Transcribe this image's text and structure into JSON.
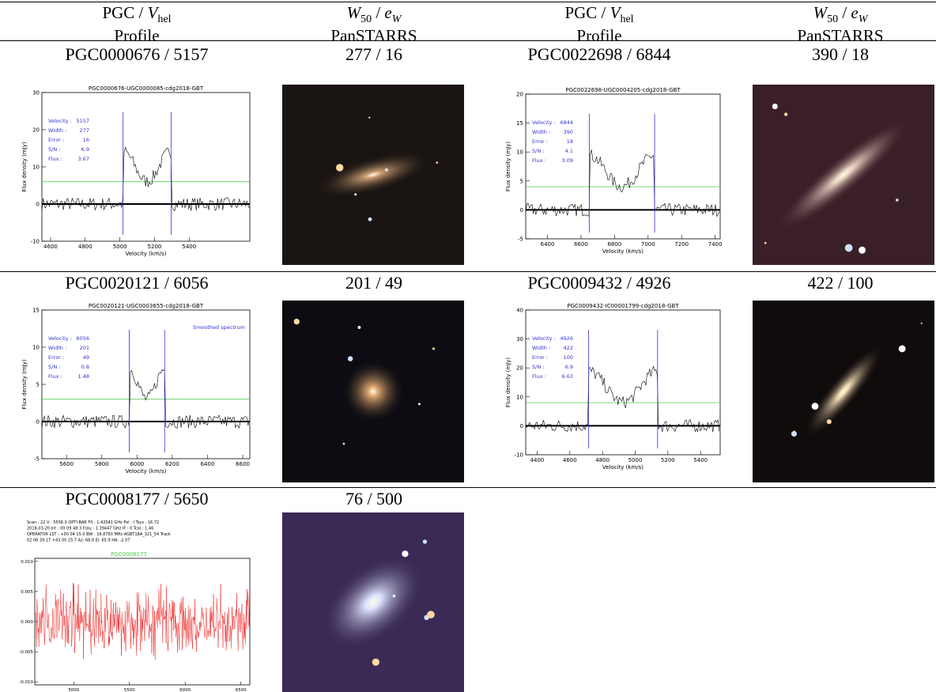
{
  "header": [
    {
      "line1": {
        "pre": "PGC / ",
        "sym": "V",
        "sub": "hel"
      },
      "line2": "Profile"
    },
    {
      "line1": {
        "sym": "W",
        "sub": "50",
        "mid": " / ",
        "sym2": "e",
        "sub2": "W"
      },
      "line2": "PanSTARRS"
    },
    {
      "line1": {
        "pre": "PGC / ",
        "sym": "V",
        "sub": "hel"
      },
      "line2": "Profile"
    },
    {
      "line1": {
        "sym": "W",
        "sub": "50",
        "mid": " / ",
        "sym2": "e",
        "sub2": "W"
      },
      "line2": "PanSTARRS"
    }
  ],
  "rows": [
    {
      "cells": [
        "PGC0000676 / 5157",
        "277 / 16",
        "PGC0022698 / 6844",
        "390 / 18"
      ]
    },
    {
      "cells": [
        "PGC0020121 / 6056",
        "201 / 49",
        "PGC0009432 / 4926",
        "422 / 100"
      ]
    },
    {
      "cells": [
        "PGC0008177 / 5650",
        "76 / 500"
      ]
    }
  ],
  "plots": [
    {
      "title": "PGC0000676-UGC0000085-cdg2018-GBT",
      "info": [
        {
          "label": "Velocity :",
          "value": 5157
        },
        {
          "label": "Width :",
          "value": 277
        },
        {
          "label": "Error :",
          "value": 16
        },
        {
          "label": "S/N :",
          "value": 6.9
        },
        {
          "label": "Flux :",
          "value": 3.67
        }
      ],
      "xlabel": "Velocity (km/s)",
      "ylabel": "Flux density (mJy)",
      "xlim": [
        4550,
        5750
      ],
      "ylim": [
        -10,
        30
      ],
      "xticks": [
        4600,
        4800,
        5000,
        5200,
        5400
      ],
      "yticks": [
        -10,
        0,
        10,
        20,
        30
      ]
    },
    {
      "title": "PGC0022698-UGC0004205-cdg2018-GBT",
      "info": [
        {
          "label": "Velocity :",
          "value": 6844
        },
        {
          "label": "Width :",
          "value": 390
        },
        {
          "label": "Error :",
          "value": 18
        },
        {
          "label": "S/N :",
          "value": 4.1
        },
        {
          "label": "Flux :",
          "value": 3.09
        }
      ],
      "xlabel": "Velocity (km/s)",
      "ylabel": "Flux density (mJy)",
      "xlim": [
        6270,
        7430
      ],
      "ylim": [
        -5,
        20
      ],
      "xticks": [
        6400,
        6600,
        6800,
        7000,
        7200,
        7400
      ],
      "yticks": [
        -5,
        0,
        5,
        10,
        15,
        20
      ]
    },
    {
      "title": "PGC0020121-UGC0003655-cdg2018-GBT",
      "note": "Smoothed spectrum",
      "info": [
        {
          "label": "Velocity :",
          "value": 6056
        },
        {
          "label": "Width :",
          "value": 201
        },
        {
          "label": "Error :",
          "value": 49
        },
        {
          "label": "S/N :",
          "value": 0.8
        },
        {
          "label": "Flux :",
          "value": 1.48
        }
      ],
      "xlabel": "Velocity (km/s)",
      "ylabel": "Flux density (mJy)",
      "xlim": [
        5460,
        6640
      ],
      "ylim": [
        -5,
        15
      ],
      "xticks": [
        5600,
        5800,
        6000,
        6200,
        6400,
        6600
      ],
      "yticks": [
        -5,
        0,
        5,
        10,
        15
      ]
    },
    {
      "title": "PGC0009432-IC00001799-cdg2018-GBT",
      "info": [
        {
          "label": "Velocity :",
          "value": 4926
        },
        {
          "label": "Width :",
          "value": 422
        },
        {
          "label": "Error :",
          "value": 100
        },
        {
          "label": "S/N :",
          "value": 6.9
        },
        {
          "label": "Flux :",
          "value": 6.63
        }
      ],
      "xlabel": "Velocity (km/s)",
      "ylabel": "Flux density (mJy)",
      "xlim": [
        4330,
        5520
      ],
      "ylim": [
        -10,
        40
      ],
      "xticks": [
        4400,
        4600,
        4800,
        5000,
        5200,
        5400
      ],
      "yticks": [
        -10,
        0,
        10,
        20,
        30,
        40
      ]
    }
  ],
  "raw_plot": {
    "header_lines": [
      "Scan : 22   V : 5556.0 OPTI-BAR   F0 : 1.42041 GHz  Pol : I   Tsys : 16.72",
      "2018-03-20   Int : 00 09 48.3   Fsky : 1.39447 GHz  IF : 0   Tcal : 1.46",
      "OPERATOR   LST : +00 04 15.0   BW : 16.8750 MHz  AGBT18A_321_54 Track",
      "02 06 39.17 +43 00 25.7   Az: 68.8  El: 65.9  HA: -2.07"
    ],
    "source": "PGC0008177",
    "xlim": [
      4650,
      6580
    ],
    "ylim": [
      -0.0105,
      0.0105
    ],
    "xticks": [
      5000,
      5500,
      6000,
      6500
    ],
    "yticks": [
      {
        "value": 0.01,
        "label": "0.010"
      },
      {
        "value": 0.005,
        "label": "0.005"
      },
      {
        "value": 0,
        "label": "0.000"
      },
      {
        "value": -0.005,
        "label": "-0.005"
      },
      {
        "value": -0.01,
        "label": "-0.010"
      }
    ]
  }
}
